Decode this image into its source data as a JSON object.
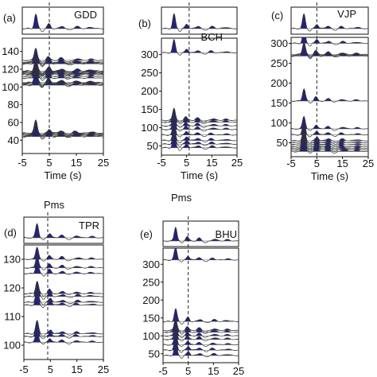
{
  "colors": {
    "fill": "#23237a",
    "trace": "#333333",
    "frame": "#111111",
    "grid": "#555555"
  },
  "chart_data": [
    {
      "type": "line",
      "panel_label": "(a)",
      "station": "GDD",
      "marker_label": "",
      "xlabel": "Time (s)",
      "xticks": [
        -5,
        5,
        15,
        25
      ],
      "xticklabels": [
        "-5",
        "5",
        "15",
        "25"
      ],
      "xlim": [
        -5,
        25
      ],
      "yticks": [
        40,
        60,
        80,
        100,
        120,
        140
      ],
      "yticklabels": [
        "40",
        "60",
        "80",
        "100",
        "120",
        "140"
      ],
      "ylim": [
        25,
        155
      ],
      "pms_time": 5,
      "top_trace": true,
      "back_azimuths": [
        130,
        128,
        127,
        126,
        118,
        117,
        116,
        115,
        114,
        112,
        110,
        105,
        104,
        103,
        102,
        48,
        47,
        46,
        45,
        44
      ]
    },
    {
      "type": "line",
      "panel_label": "(b)",
      "station": "BCH",
      "marker_label": "",
      "xlabel": "Time (s)",
      "xticks": [
        -5,
        5,
        15,
        25
      ],
      "xticklabels": [
        "-5",
        "5",
        "15",
        "25"
      ],
      "xlim": [
        -5,
        25
      ],
      "yticks": [
        50,
        100,
        150,
        200,
        250,
        300
      ],
      "yticklabels": [
        "50",
        "100",
        "150",
        "200",
        "250",
        "300"
      ],
      "ylim": [
        25,
        345
      ],
      "pms_time": 6,
      "top_trace": true,
      "back_azimuths": [
        305,
        120,
        115,
        105,
        95,
        80,
        65,
        55,
        45
      ]
    },
    {
      "type": "line",
      "panel_label": "(c)",
      "station": "VJP",
      "marker_label": "",
      "xlabel": "Time (s)",
      "xticks": [
        -5,
        5,
        15,
        25
      ],
      "xticklabels": [
        "-5",
        "5",
        "15",
        "25"
      ],
      "xlim": [
        -5,
        25
      ],
      "yticks": [
        50,
        100,
        150,
        200,
        250,
        300
      ],
      "yticklabels": [
        "50",
        "100",
        "150",
        "200",
        "250",
        "300"
      ],
      "ylim": [
        15,
        315
      ],
      "pms_time": 5,
      "top_trace": true,
      "back_azimuths": [
        300,
        272,
        270,
        268,
        155,
        85,
        70,
        55,
        50,
        45,
        40,
        36,
        32,
        28
      ]
    },
    {
      "type": "line",
      "panel_label": "(d)",
      "station": "TPR",
      "marker_label": "Pms",
      "xlabel": "",
      "xticks": [
        -5,
        5,
        15,
        25
      ],
      "xticklabels": [
        "-5",
        "5",
        "15",
        "25"
      ],
      "xlim": [
        -5,
        25
      ],
      "yticks": [
        100,
        110,
        120,
        130
      ],
      "yticklabels": [
        "100",
        "110",
        "120",
        "130"
      ],
      "ylim": [
        95,
        135
      ],
      "pms_time": 4,
      "top_trace": true,
      "back_azimuths": [
        130,
        127,
        125,
        118,
        117,
        115,
        114,
        104,
        103,
        101
      ]
    },
    {
      "type": "line",
      "panel_label": "(e)",
      "station": "BHU",
      "marker_label": "Pms",
      "xlabel": "",
      "xticks": [
        -5,
        5,
        15,
        25
      ],
      "xticklabels": [
        "-5",
        "5",
        "15",
        "25"
      ],
      "xlim": [
        -5,
        25
      ],
      "yticks": [
        50,
        100,
        150,
        200,
        250,
        300
      ],
      "yticklabels": [
        "50",
        "100",
        "150",
        "200",
        "250",
        "300"
      ],
      "ylim": [
        25,
        345
      ],
      "pms_time": 5,
      "top_trace": true,
      "back_azimuths": [
        312,
        140,
        115,
        110,
        100,
        90,
        75,
        60,
        45
      ]
    }
  ]
}
